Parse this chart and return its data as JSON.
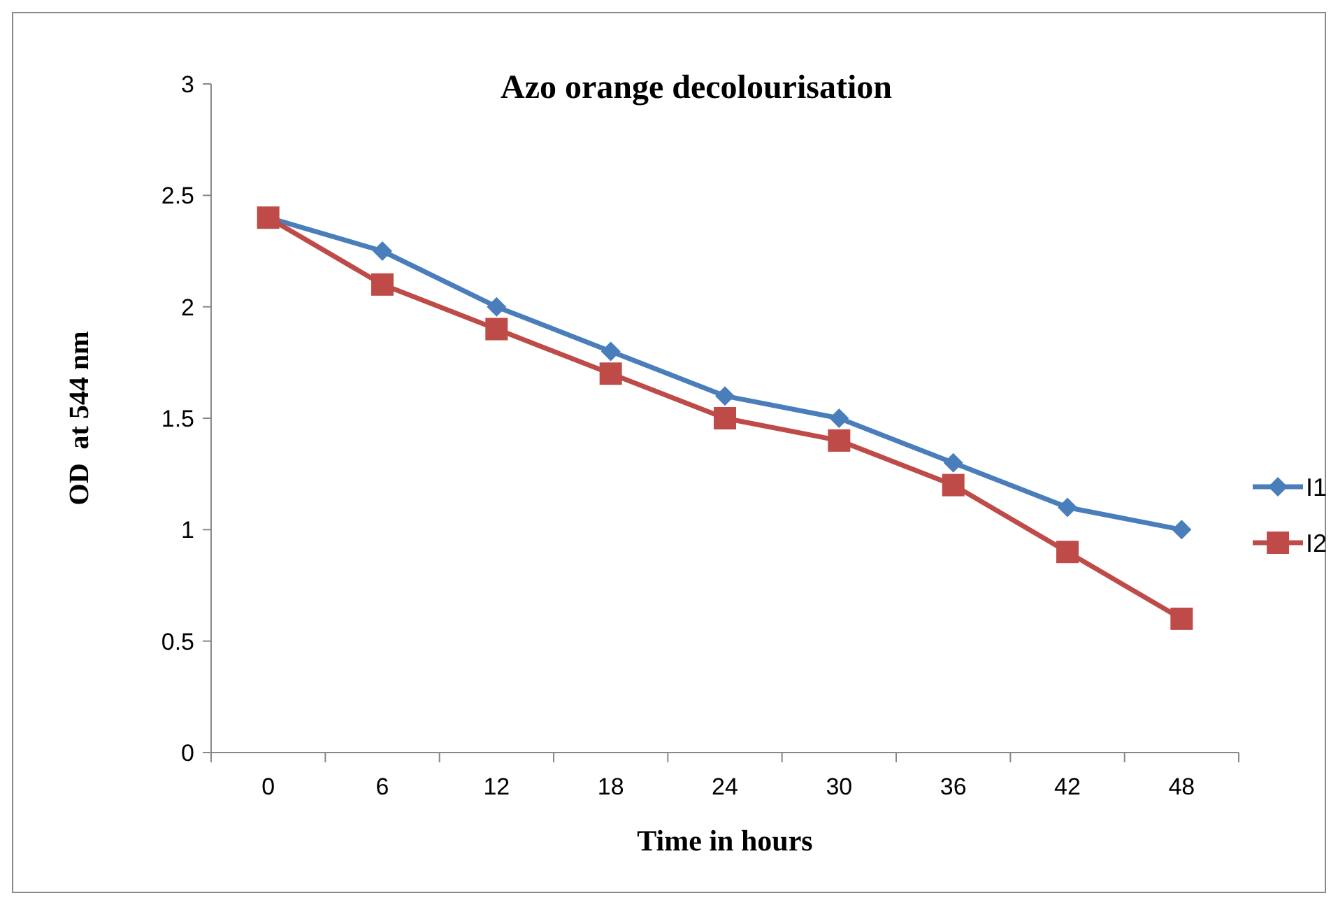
{
  "chart_data": {
    "type": "line",
    "title": "Azo orange decolourisation",
    "xlabel": "Time in hours",
    "ylabel": "OD  at 544 nm",
    "categories": [
      "0",
      "6",
      "12",
      "18",
      "24",
      "30",
      "36",
      "42",
      "48"
    ],
    "series": [
      {
        "name": "I1",
        "color": "#4a7ebb",
        "marker": "diamond",
        "values": [
          2.4,
          2.25,
          2.0,
          1.8,
          1.6,
          1.5,
          1.3,
          1.1,
          1.0
        ]
      },
      {
        "name": "I2",
        "color": "#be4b48",
        "marker": "square",
        "values": [
          2.4,
          2.1,
          1.9,
          1.7,
          1.5,
          1.4,
          1.2,
          0.9,
          0.6
        ]
      }
    ],
    "ylim": [
      0,
      3
    ],
    "yticks": [
      0,
      0.5,
      1,
      1.5,
      2,
      2.5,
      3
    ],
    "grid": false,
    "legend": "right",
    "line_style": "solid"
  }
}
